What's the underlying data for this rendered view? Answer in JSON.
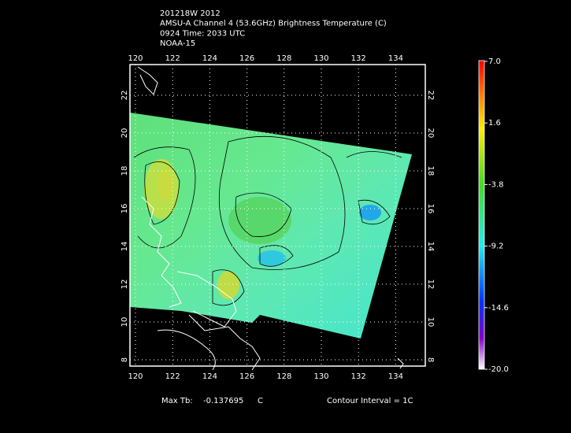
{
  "header": {
    "lines": [
      "201218W 2012",
      "AMSU-A Channel 4 (53.6GHz) Brightness Temperature (C)",
      "0924 Time: 2033 UTC",
      "NOAA-15"
    ]
  },
  "map": {
    "lon_ticks": [
      120,
      122,
      124,
      126,
      128,
      130,
      132,
      134
    ],
    "lat_ticks": [
      8,
      10,
      12,
      14,
      16,
      18,
      20,
      22
    ]
  },
  "colorbar": {
    "labels": [
      "7.0",
      "1.6",
      "-3.8",
      "-9.2",
      "-14.6",
      "-20.0"
    ]
  },
  "footer": {
    "max_label": "Max Tb:",
    "max_value": "-0.137695",
    "max_unit": "C",
    "contour": "Contour Interval = 1C"
  }
}
